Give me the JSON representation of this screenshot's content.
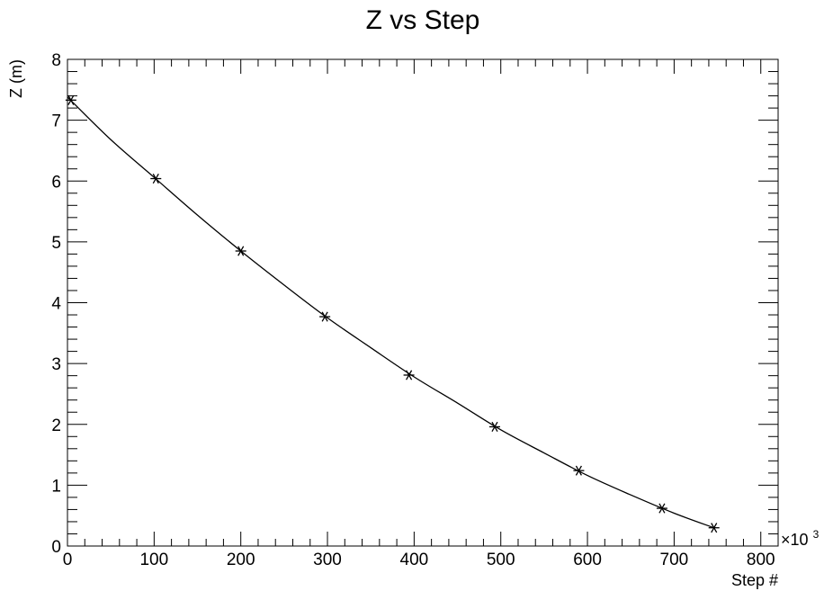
{
  "chart_data": {
    "type": "scatter",
    "title": "Z vs Step",
    "xlabel": "Step #",
    "ylabel": "Z (m)",
    "x_multiplier": "×10",
    "x_multiplier_exp": "3",
    "xlim": [
      0,
      820
    ],
    "ylim": [
      0,
      8
    ],
    "x_ticks": [
      0,
      100,
      200,
      300,
      400,
      500,
      600,
      700,
      800
    ],
    "y_ticks": [
      0,
      1,
      2,
      3,
      4,
      5,
      6,
      7,
      8
    ],
    "grid": false,
    "marker": "asterisk",
    "series": [
      {
        "x": [
          4,
          102,
          200,
          297,
          394,
          493,
          590,
          686,
          746
        ],
        "y": [
          7.33,
          6.04,
          4.85,
          3.77,
          2.81,
          1.96,
          1.24,
          0.62,
          0.3
        ]
      }
    ],
    "curve": {
      "x": [
        0,
        50,
        100,
        150,
        200,
        250,
        300,
        350,
        400,
        450,
        500,
        550,
        600,
        650,
        700,
        746
      ],
      "y": [
        7.38,
        6.68,
        6.06,
        5.44,
        4.85,
        4.29,
        3.75,
        3.26,
        2.78,
        2.35,
        1.91,
        1.53,
        1.16,
        0.84,
        0.54,
        0.3
      ]
    }
  }
}
